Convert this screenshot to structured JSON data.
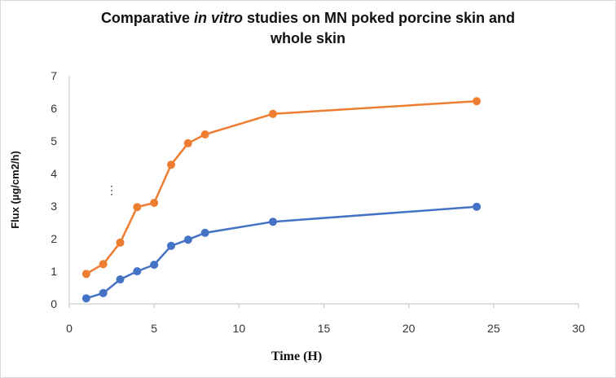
{
  "chart_data": {
    "type": "line",
    "title_parts": [
      "Comparative ",
      "in vitro",
      " studies on MN poked porcine skin and",
      "whole skin"
    ],
    "xlabel": "Time (H)",
    "ylabel": "Flux (µg/cm2/h)",
    "xlim": [
      0,
      30
    ],
    "ylim": [
      0,
      7
    ],
    "xticks": [
      0,
      5,
      10,
      15,
      20,
      25,
      30
    ],
    "yticks": [
      0,
      1,
      2,
      3,
      4,
      5,
      6,
      7
    ],
    "grid": false,
    "legend": "none",
    "annotation": "⋮",
    "series": [
      {
        "color": "#4472c4",
        "x": [
          1,
          2,
          3,
          4,
          5,
          6,
          7,
          8,
          12,
          24
        ],
        "y": [
          0.17,
          0.33,
          0.75,
          1.0,
          1.2,
          1.78,
          1.97,
          2.18,
          2.52,
          2.98
        ]
      },
      {
        "color": "#ed7d31",
        "x": [
          1,
          2,
          3,
          4,
          5,
          6,
          7,
          8,
          12,
          24
        ],
        "y": [
          0.92,
          1.22,
          1.88,
          2.97,
          3.1,
          4.27,
          4.93,
          5.2,
          5.83,
          6.22
        ]
      }
    ]
  }
}
